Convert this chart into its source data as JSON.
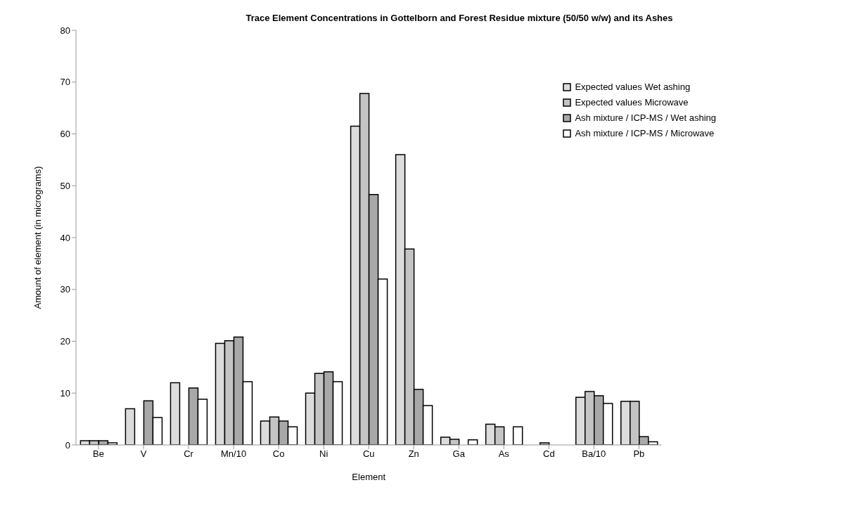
{
  "chart_data": {
    "type": "bar",
    "title": "Trace Element Concentrations in Gottelborn and Forest Residue mixture (50/50 w/w) and its Ashes",
    "xlabel": "Element",
    "ylabel": "Amount of element (in micrograms)",
    "categories": [
      "Be",
      "V",
      "Cr",
      "Mn/10",
      "Co",
      "Ni",
      "Cu",
      "Zn",
      "Ga",
      "As",
      "Cd",
      "Ba/10",
      "Pb"
    ],
    "series": [
      {
        "name": "Expected values Wet ashing",
        "color": "#dcdcdc",
        "values": [
          0.8,
          7,
          12,
          19.6,
          4.6,
          10,
          61.5,
          56,
          1.5,
          4,
          null,
          9.2,
          8.4
        ]
      },
      {
        "name": "Expected values Microwave",
        "color": "#c4c4c4",
        "values": [
          0.8,
          null,
          null,
          20.1,
          5.4,
          13.8,
          67.8,
          37.8,
          1.1,
          3.5,
          0.4,
          10.3,
          8.4
        ]
      },
      {
        "name": "Ash mixture / ICP-MS /  Wet ashing",
        "color": "#a8a8a8",
        "values": [
          0.8,
          8.5,
          11,
          20.8,
          4.6,
          14.1,
          48.3,
          10.7,
          null,
          null,
          null,
          9.5,
          1.6
        ]
      },
      {
        "name": "Ash mixture / ICP-MS /  Microwave",
        "color": "#ffffff",
        "values": [
          0.4,
          5.3,
          8.8,
          12.2,
          3.5,
          12.2,
          32,
          7.6,
          1,
          3.5,
          null,
          8,
          0.6
        ]
      }
    ],
    "ylim": [
      0,
      80
    ],
    "yticks": [
      0,
      10,
      20,
      30,
      40,
      50,
      60,
      70,
      80
    ],
    "grid": false,
    "legend": "top right"
  }
}
